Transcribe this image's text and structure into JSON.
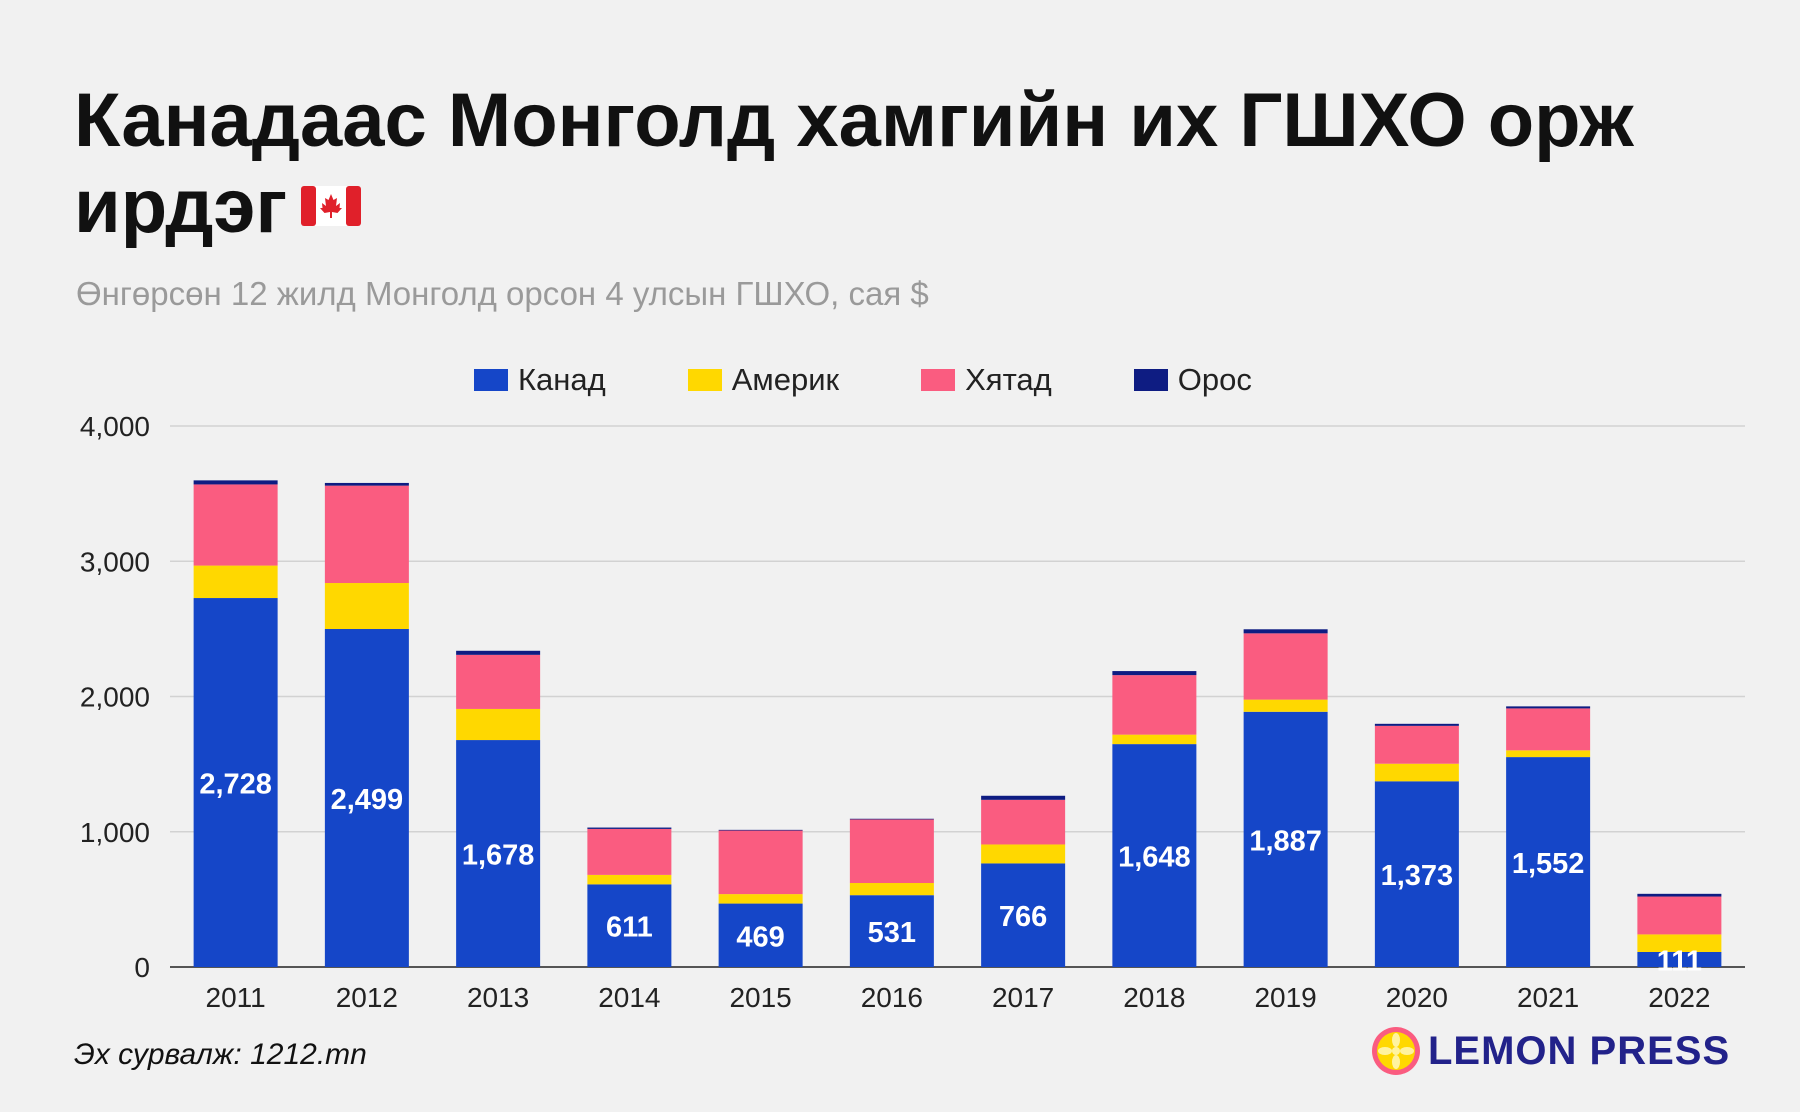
{
  "title": "Канадаас Монголд хамгийн их ГШХО орж ирдэг",
  "subtitle": "Өнгөрсөн 12 жилд Монголд орсон 4 улсын ГШХО, сая $",
  "source": "Эх сурвалж: 1212.mn",
  "logo": {
    "text": "LEMON PRESS",
    "icon": "lemon-slice-icon"
  },
  "flag_icon": "canada-flag-icon",
  "colors": {
    "canada": "#1546c8",
    "usa": "#ffd800",
    "china": "#fa5c80",
    "russia": "#0e1c82",
    "background": "#f1f1f1"
  },
  "chart_data": {
    "type": "bar",
    "stacked": true,
    "categories": [
      "2011",
      "2012",
      "2013",
      "2014",
      "2015",
      "2016",
      "2017",
      "2018",
      "2019",
      "2020",
      "2021",
      "2022"
    ],
    "series": [
      {
        "name": "Канад",
        "color": "#1546c8",
        "values": [
          2728,
          2499,
          1678,
          611,
          469,
          531,
          766,
          1648,
          1887,
          1373,
          1552,
          111
        ]
      },
      {
        "name": "Америк",
        "color": "#ffd800",
        "values": [
          240,
          340,
          230,
          70,
          70,
          90,
          140,
          70,
          90,
          130,
          50,
          130
        ]
      },
      {
        "name": "Хятад",
        "color": "#fa5c80",
        "values": [
          600,
          720,
          400,
          340,
          470,
          470,
          330,
          440,
          490,
          280,
          310,
          280
        ]
      },
      {
        "name": "Орос",
        "color": "#0e1c82",
        "values": [
          30,
          20,
          30,
          10,
          5,
          5,
          30,
          30,
          30,
          15,
          15,
          20
        ]
      }
    ],
    "data_labels": [
      "2,728",
      "2,499",
      "1,678",
      "611",
      "469",
      "531",
      "766",
      "1,648",
      "1,887",
      "1,373",
      "1,552",
      "111"
    ],
    "y_ticks": [
      "0",
      "1,000",
      "2,000",
      "3,000",
      "4,000"
    ],
    "ylim": [
      0,
      4000
    ],
    "grid": true,
    "legend_position": "top"
  }
}
